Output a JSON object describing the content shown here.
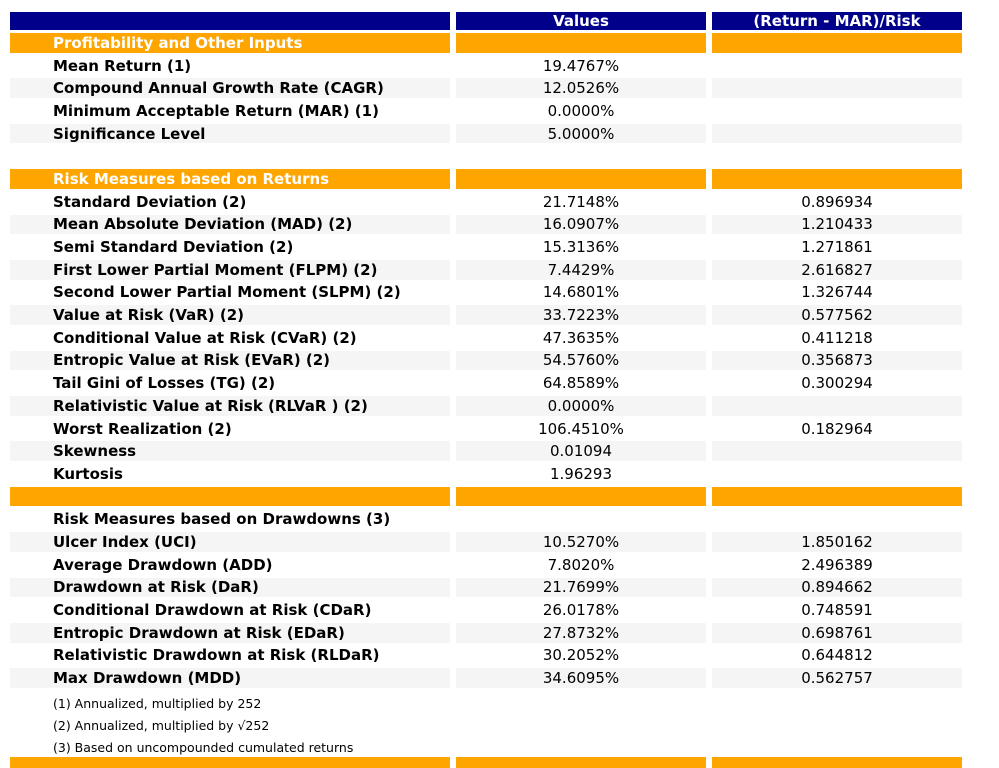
{
  "colors": {
    "header_bg": "#00008B",
    "section_bg": "#FFA500",
    "alt_row_bg": "#F5F5F5",
    "header_text": "#FFFFFF",
    "body_text": "#000000"
  },
  "chart_data": {
    "type": "table",
    "title": "",
    "columns": [
      "",
      "Values",
      "(Return - MAR)/Risk"
    ],
    "sections": [
      {
        "header": "Profitability and Other Inputs",
        "header_style": "orange",
        "divider_before": null,
        "rows": [
          {
            "label": "Mean Return (1)",
            "value": "19.4767%",
            "ratio": ""
          },
          {
            "label": "Compound Annual Growth Rate (CAGR)",
            "value": "12.0526%",
            "ratio": ""
          },
          {
            "label": "Minimum Acceptable Return (MAR) (1)",
            "value": "0.0000%",
            "ratio": ""
          },
          {
            "label": "Significance Level",
            "value": "5.0000%",
            "ratio": ""
          }
        ]
      },
      {
        "header": "Risk Measures based on Returns",
        "header_style": "orange",
        "divider_before": "blank",
        "rows": [
          {
            "label": "Standard Deviation (2)",
            "value": "21.7148%",
            "ratio": "0.896934"
          },
          {
            "label": "Mean Absolute Deviation (MAD) (2)",
            "value": "16.0907%",
            "ratio": "1.210433"
          },
          {
            "label": "Semi Standard Deviation (2)",
            "value": "15.3136%",
            "ratio": "1.271861"
          },
          {
            "label": "First Lower Partial Moment (FLPM) (2)",
            "value": "7.4429%",
            "ratio": "2.616827"
          },
          {
            "label": "Second Lower Partial Moment (SLPM) (2)",
            "value": "14.6801%",
            "ratio": "1.326744"
          },
          {
            "label": "Value at Risk (VaR) (2)",
            "value": "33.7223%",
            "ratio": "0.577562"
          },
          {
            "label": "Conditional Value at Risk (CVaR) (2)",
            "value": "47.3635%",
            "ratio": "0.411218"
          },
          {
            "label": "Entropic Value at Risk (EVaR) (2)",
            "value": "54.5760%",
            "ratio": "0.356873"
          },
          {
            "label": "Tail Gini of Losses (TG) (2)",
            "value": "64.8589%",
            "ratio": "0.300294"
          },
          {
            "label": "Relativistic Value at Risk (RLVaR ) (2)",
            "value": "0.0000%",
            "ratio": ""
          },
          {
            "label": "Worst Realization (2)",
            "value": "106.4510%",
            "ratio": "0.182964"
          },
          {
            "label": "Skewness",
            "value": "0.01094",
            "ratio": ""
          },
          {
            "label": "Kurtosis",
            "value": "1.96293",
            "ratio": ""
          }
        ]
      },
      {
        "header": "Risk Measures based on Drawdowns (3)",
        "header_style": "plain",
        "divider_before": "orange",
        "rows": [
          {
            "label": "Ulcer Index (UCI)",
            "value": "10.5270%",
            "ratio": "1.850162"
          },
          {
            "label": "Average Drawdown (ADD)",
            "value": "7.8020%",
            "ratio": "2.496389"
          },
          {
            "label": "Drawdown at Risk (DaR)",
            "value": "21.7699%",
            "ratio": "0.894662"
          },
          {
            "label": "Conditional Drawdown at Risk (CDaR)",
            "value": "26.0178%",
            "ratio": "0.748591"
          },
          {
            "label": "Entropic Drawdown at Risk (EDaR)",
            "value": "27.8732%",
            "ratio": "0.698761"
          },
          {
            "label": "Relativistic Drawdown at Risk (RLDaR)",
            "value": "30.2052%",
            "ratio": "0.644812"
          },
          {
            "label": "Max Drawdown (MDD)",
            "value": "34.6095%",
            "ratio": "0.562757"
          }
        ]
      }
    ],
    "footnotes": [
      "(1) Annualized, multiplied by 252",
      "(2) Annualized, multiplied by √252",
      "(3) Based on uncompounded cumulated returns"
    ]
  }
}
